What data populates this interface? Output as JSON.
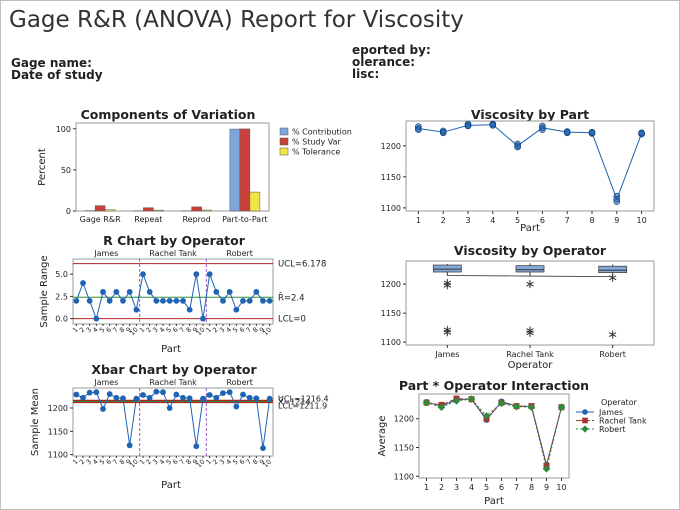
{
  "report": {
    "title": "Gage R&R (ANOVA) Report for Viscosity",
    "left_fields": [
      "Gage name:",
      "Date of study"
    ],
    "right_fields": [
      "eported by:",
      "olerance:",
      "lisc:"
    ]
  },
  "colors": {
    "contribution": "#7ea6dc",
    "study_var": "#c9413b",
    "tolerance": "#f2e444",
    "points": "#1f64b4",
    "center_green": "#2e8b3a",
    "limit_red": "#b32020",
    "divider_purple": "#9a5cc9",
    "box_fill": "#86a8d8",
    "james": "#1f64b4",
    "rachel": "#a8322e",
    "robert": "#2e8b3a"
  },
  "chart_data": [
    {
      "id": "components",
      "type": "bar",
      "title": "Components of Variation",
      "xlabel": "",
      "ylabel": "Percent",
      "ylim": [
        0,
        100
      ],
      "yticks": [
        0,
        50,
        100
      ],
      "categories": [
        "Gage R&R",
        "Repeat",
        "Reprod",
        "Part-to-Part"
      ],
      "series": [
        {
          "name": "% Contribution",
          "values": [
            0.4,
            0.2,
            0.2,
            99.6
          ]
        },
        {
          "name": "% Study Var",
          "values": [
            6.5,
            4.0,
            5.0,
            99.8
          ]
        },
        {
          "name": "% Tolerance",
          "values": [
            1.5,
            1.0,
            1.2,
            23.0
          ]
        }
      ],
      "legend": "right"
    },
    {
      "id": "by_part",
      "type": "scatter",
      "title": "Viscosity by Part",
      "xlabel": "Part",
      "ylabel": "",
      "xlim": [
        0.5,
        10.5
      ],
      "ylim": [
        1095,
        1240
      ],
      "xticks": [
        1,
        2,
        3,
        4,
        5,
        6,
        7,
        8,
        9,
        10
      ],
      "yticks": [
        1100,
        1150,
        1200
      ],
      "points": [
        [
          1,
          1228
        ],
        [
          1,
          1231
        ],
        [
          1,
          1226
        ],
        [
          2,
          1221
        ],
        [
          2,
          1224
        ],
        [
          2,
          1222
        ],
        [
          3,
          1233
        ],
        [
          3,
          1235
        ],
        [
          3,
          1232
        ],
        [
          4,
          1234
        ],
        [
          4,
          1235
        ],
        [
          4,
          1233
        ],
        [
          5,
          1198
        ],
        [
          5,
          1203
        ],
        [
          5,
          1200
        ],
        [
          6,
          1232
        ],
        [
          6,
          1226
        ],
        [
          6,
          1229
        ],
        [
          7,
          1222
        ],
        [
          7,
          1221
        ],
        [
          7,
          1223
        ],
        [
          8,
          1221
        ],
        [
          8,
          1220
        ],
        [
          8,
          1222
        ],
        [
          9,
          1110
        ],
        [
          9,
          1119
        ],
        [
          9,
          1114
        ],
        [
          10,
          1220
        ],
        [
          10,
          1219
        ],
        [
          10,
          1221
        ]
      ],
      "means": [
        1228,
        1222,
        1233,
        1234,
        1200,
        1229,
        1222,
        1221,
        1114,
        1220
      ]
    },
    {
      "id": "r_chart",
      "type": "line",
      "title": "R Chart by Operator",
      "xlabel": "Part",
      "ylabel": "Sample Range",
      "ylim": [
        -0.6,
        6.7
      ],
      "yticks": [
        0.0,
        2.5,
        5.0
      ],
      "ytick_labels": [
        "0.0",
        "2.5",
        "5.0"
      ],
      "operators": [
        "James",
        "Rachel Tank",
        "Robert"
      ],
      "x_tick_labels": [
        "1",
        "2",
        "3",
        "4",
        "5",
        "6",
        "7",
        "8",
        "9",
        "10",
        "1",
        "2",
        "3",
        "4",
        "5",
        "6",
        "7",
        "8",
        "9",
        "10",
        "1",
        "2",
        "3",
        "4",
        "5",
        "6",
        "7",
        "8",
        "9",
        "10"
      ],
      "values": [
        2,
        4,
        2,
        0,
        3,
        2,
        3,
        2,
        3,
        1,
        5,
        3,
        2,
        2,
        2,
        2,
        2,
        1,
        5,
        0,
        5,
        3,
        2,
        3,
        1,
        2,
        2,
        3,
        2,
        2
      ],
      "center": 2.4,
      "ucl": 6.178,
      "lcl": 0,
      "center_label": "R̄=2.4",
      "ucl_label": "UCL=6.178",
      "lcl_label": "LCL=0"
    },
    {
      "id": "by_operator",
      "type": "box",
      "title": "Viscosity by Operator",
      "xlabel": "Operator",
      "ylabel": "",
      "ylim": [
        1095,
        1240
      ],
      "yticks": [
        1100,
        1150,
        1200
      ],
      "categories": [
        "James",
        "Rachel Tank",
        "Robert"
      ],
      "boxes": [
        {
          "q1": 1221,
          "median": 1226,
          "q3": 1233,
          "whisker_low": 1215,
          "whisker_high": 1235,
          "mean": 1215,
          "outliers": [
            1198,
            1202,
            1117,
            1121
          ]
        },
        {
          "q1": 1221,
          "median": 1225,
          "q3": 1232,
          "whisker_low": 1214,
          "whisker_high": 1236,
          "mean": 1214,
          "outliers": [
            1200,
            1116,
            1120
          ]
        },
        {
          "q1": 1220,
          "median": 1224,
          "q3": 1231,
          "whisker_low": 1215,
          "whisker_high": 1234,
          "mean": 1213,
          "outliers": [
            1211,
            1113
          ]
        }
      ]
    },
    {
      "id": "xbar_chart",
      "type": "line",
      "title": "Xbar Chart by Operator",
      "xlabel": "Part",
      "ylabel": "Sample Mean",
      "ylim": [
        1097,
        1243
      ],
      "yticks": [
        1100,
        1150,
        1200
      ],
      "operators": [
        "James",
        "Rachel Tank",
        "Robert"
      ],
      "x_tick_labels": [
        "1",
        "2",
        "3",
        "4",
        "5",
        "6",
        "7",
        "8",
        "9",
        "10",
        "1",
        "2",
        "3",
        "4",
        "5",
        "6",
        "7",
        "8",
        "9",
        "10",
        "1",
        "2",
        "3",
        "4",
        "5",
        "6",
        "7",
        "8",
        "9",
        "10"
      ],
      "values": [
        1229,
        1222,
        1233,
        1234,
        1198,
        1230,
        1222,
        1221,
        1120,
        1220,
        1228,
        1222,
        1235,
        1234,
        1200,
        1229,
        1222,
        1221,
        1118,
        1220,
        1228,
        1222,
        1232,
        1234,
        1203,
        1229,
        1222,
        1221,
        1114,
        1220
      ],
      "center": 1214,
      "ucl": 1216.4,
      "lcl": 1211.9,
      "center_label": "X̄=1214",
      "ucl_label": "UCL=1216.4",
      "lcl_label": "LCL=1211.9"
    },
    {
      "id": "interaction",
      "type": "line",
      "title": "Part * Operator Interaction",
      "xlabel": "Part",
      "ylabel": "Average",
      "xlim": [
        0.5,
        10.5
      ],
      "ylim": [
        1097,
        1243
      ],
      "xticks": [
        1,
        2,
        3,
        4,
        5,
        6,
        7,
        8,
        9,
        10
      ],
      "yticks": [
        1100,
        1150,
        1200
      ],
      "legend_title": "Operator",
      "series": [
        {
          "name": "James",
          "values": [
            1229,
            1222,
            1233,
            1234,
            1198,
            1230,
            1222,
            1221,
            1120,
            1220
          ]
        },
        {
          "name": "Rachel Tank",
          "values": [
            1228,
            1224,
            1235,
            1234,
            1200,
            1228,
            1222,
            1222,
            1118,
            1220
          ]
        },
        {
          "name": "Robert",
          "values": [
            1228,
            1220,
            1231,
            1234,
            1205,
            1227,
            1221,
            1220,
            1113,
            1220
          ]
        }
      ]
    }
  ]
}
